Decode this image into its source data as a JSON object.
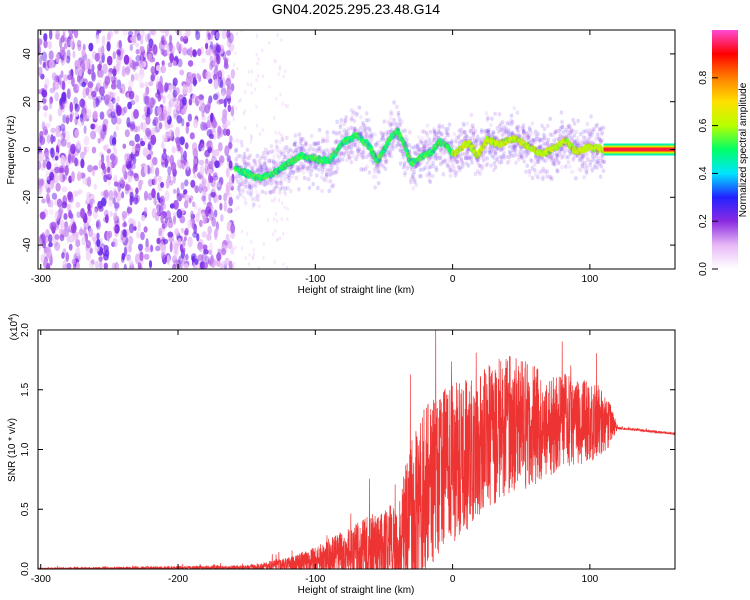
{
  "figure": {
    "title": "GN04.2025.295.23.48.G14"
  },
  "chart_data": [
    {
      "type": "heatmap",
      "xlabel": "Height of straight line (km)",
      "ylabel": "Frequency (Hz)",
      "xlim": [
        -302,
        162
      ],
      "ylim": [
        -50,
        50
      ],
      "xticks": [
        -300,
        -200,
        -100,
        0,
        100
      ],
      "yticks": [
        -40,
        -20,
        0,
        20,
        40
      ],
      "colorbar": {
        "label": "Normalized spectral amplitude",
        "range": [
          0,
          1
        ],
        "ticks": [
          0.0,
          0.2,
          0.4,
          0.6,
          0.8
        ],
        "colors": [
          "#ffffff",
          "#e8b8f6",
          "#8a2be2",
          "#2222ff",
          "#00e5ff",
          "#00ff66",
          "#b8ff00",
          "#ffe000",
          "#ff8000",
          "#ff0000",
          "#ff4bd5"
        ]
      },
      "noise_region": {
        "x": [
          -302,
          -160
        ],
        "freq": [
          -50,
          50
        ],
        "amplitude": 0.2
      },
      "ridge": [
        {
          "x": -158,
          "freq": -8
        },
        {
          "x": -150,
          "freq": -10
        },
        {
          "x": -140,
          "freq": -12
        },
        {
          "x": -130,
          "freq": -10
        },
        {
          "x": -120,
          "freq": -6
        },
        {
          "x": -110,
          "freq": -3
        },
        {
          "x": -100,
          "freq": -4
        },
        {
          "x": -90,
          "freq": -5
        },
        {
          "x": -80,
          "freq": 3
        },
        {
          "x": -70,
          "freq": 6
        },
        {
          "x": -60,
          "freq": 1
        },
        {
          "x": -55,
          "freq": -5
        },
        {
          "x": -45,
          "freq": 5
        },
        {
          "x": -40,
          "freq": 8
        },
        {
          "x": -35,
          "freq": 2
        },
        {
          "x": -30,
          "freq": -6
        },
        {
          "x": -25,
          "freq": -4
        },
        {
          "x": -15,
          "freq": -1
        },
        {
          "x": -10,
          "freq": 3
        },
        {
          "x": -5,
          "freq": 2
        },
        {
          "x": 0,
          "freq": -2
        },
        {
          "x": 5,
          "freq": 0
        },
        {
          "x": 12,
          "freq": 3
        },
        {
          "x": 18,
          "freq": -3
        },
        {
          "x": 25,
          "freq": 4
        },
        {
          "x": 35,
          "freq": 2
        },
        {
          "x": 45,
          "freq": 5
        },
        {
          "x": 55,
          "freq": 1
        },
        {
          "x": 65,
          "freq": -2
        },
        {
          "x": 75,
          "freq": 1
        },
        {
          "x": 82,
          "freq": 4
        },
        {
          "x": 90,
          "freq": -1
        },
        {
          "x": 100,
          "freq": 1
        },
        {
          "x": 110,
          "freq": 0
        },
        {
          "x": 162,
          "freq": 0
        }
      ]
    },
    {
      "type": "line",
      "xlabel": "Height of straight line (km)",
      "ylabel": "SNR (10 * v/v)",
      "yscale_label": "(x10",
      "yscale_exp": "4",
      "yscale_close": ")",
      "xlim": [
        -302,
        162
      ],
      "ylim": [
        0,
        2.0
      ],
      "xticks": [
        -300,
        -200,
        -100,
        0,
        100
      ],
      "yticks": [
        "0.0",
        "0.5",
        "1.0",
        "1.5",
        "2.0"
      ],
      "color": "#ee3333",
      "envelope": [
        {
          "x": -302,
          "mean": 0.0,
          "spread": 0.01
        },
        {
          "x": -150,
          "mean": 0.01,
          "spread": 0.02
        },
        {
          "x": -120,
          "mean": 0.03,
          "spread": 0.06
        },
        {
          "x": -100,
          "mean": 0.06,
          "spread": 0.12
        },
        {
          "x": -80,
          "mean": 0.1,
          "spread": 0.2
        },
        {
          "x": -60,
          "mean": 0.12,
          "spread": 0.3
        },
        {
          "x": -40,
          "mean": 0.15,
          "spread": 0.4
        },
        {
          "x": -30,
          "mean": 0.3,
          "spread": 0.7
        },
        {
          "x": -20,
          "mean": 0.6,
          "spread": 0.7
        },
        {
          "x": 0,
          "mean": 0.8,
          "spread": 0.7
        },
        {
          "x": 20,
          "mean": 1.0,
          "spread": 0.6
        },
        {
          "x": 40,
          "mean": 1.15,
          "spread": 0.6
        },
        {
          "x": 60,
          "mean": 1.15,
          "spread": 0.5
        },
        {
          "x": 80,
          "mean": 1.2,
          "spread": 0.4
        },
        {
          "x": 100,
          "mean": 1.2,
          "spread": 0.35
        },
        {
          "x": 115,
          "mean": 1.2,
          "spread": 0.2
        },
        {
          "x": 120,
          "mean": 1.18,
          "spread": 0.01
        },
        {
          "x": 162,
          "mean": 1.13,
          "spread": 0.01
        }
      ]
    }
  ]
}
